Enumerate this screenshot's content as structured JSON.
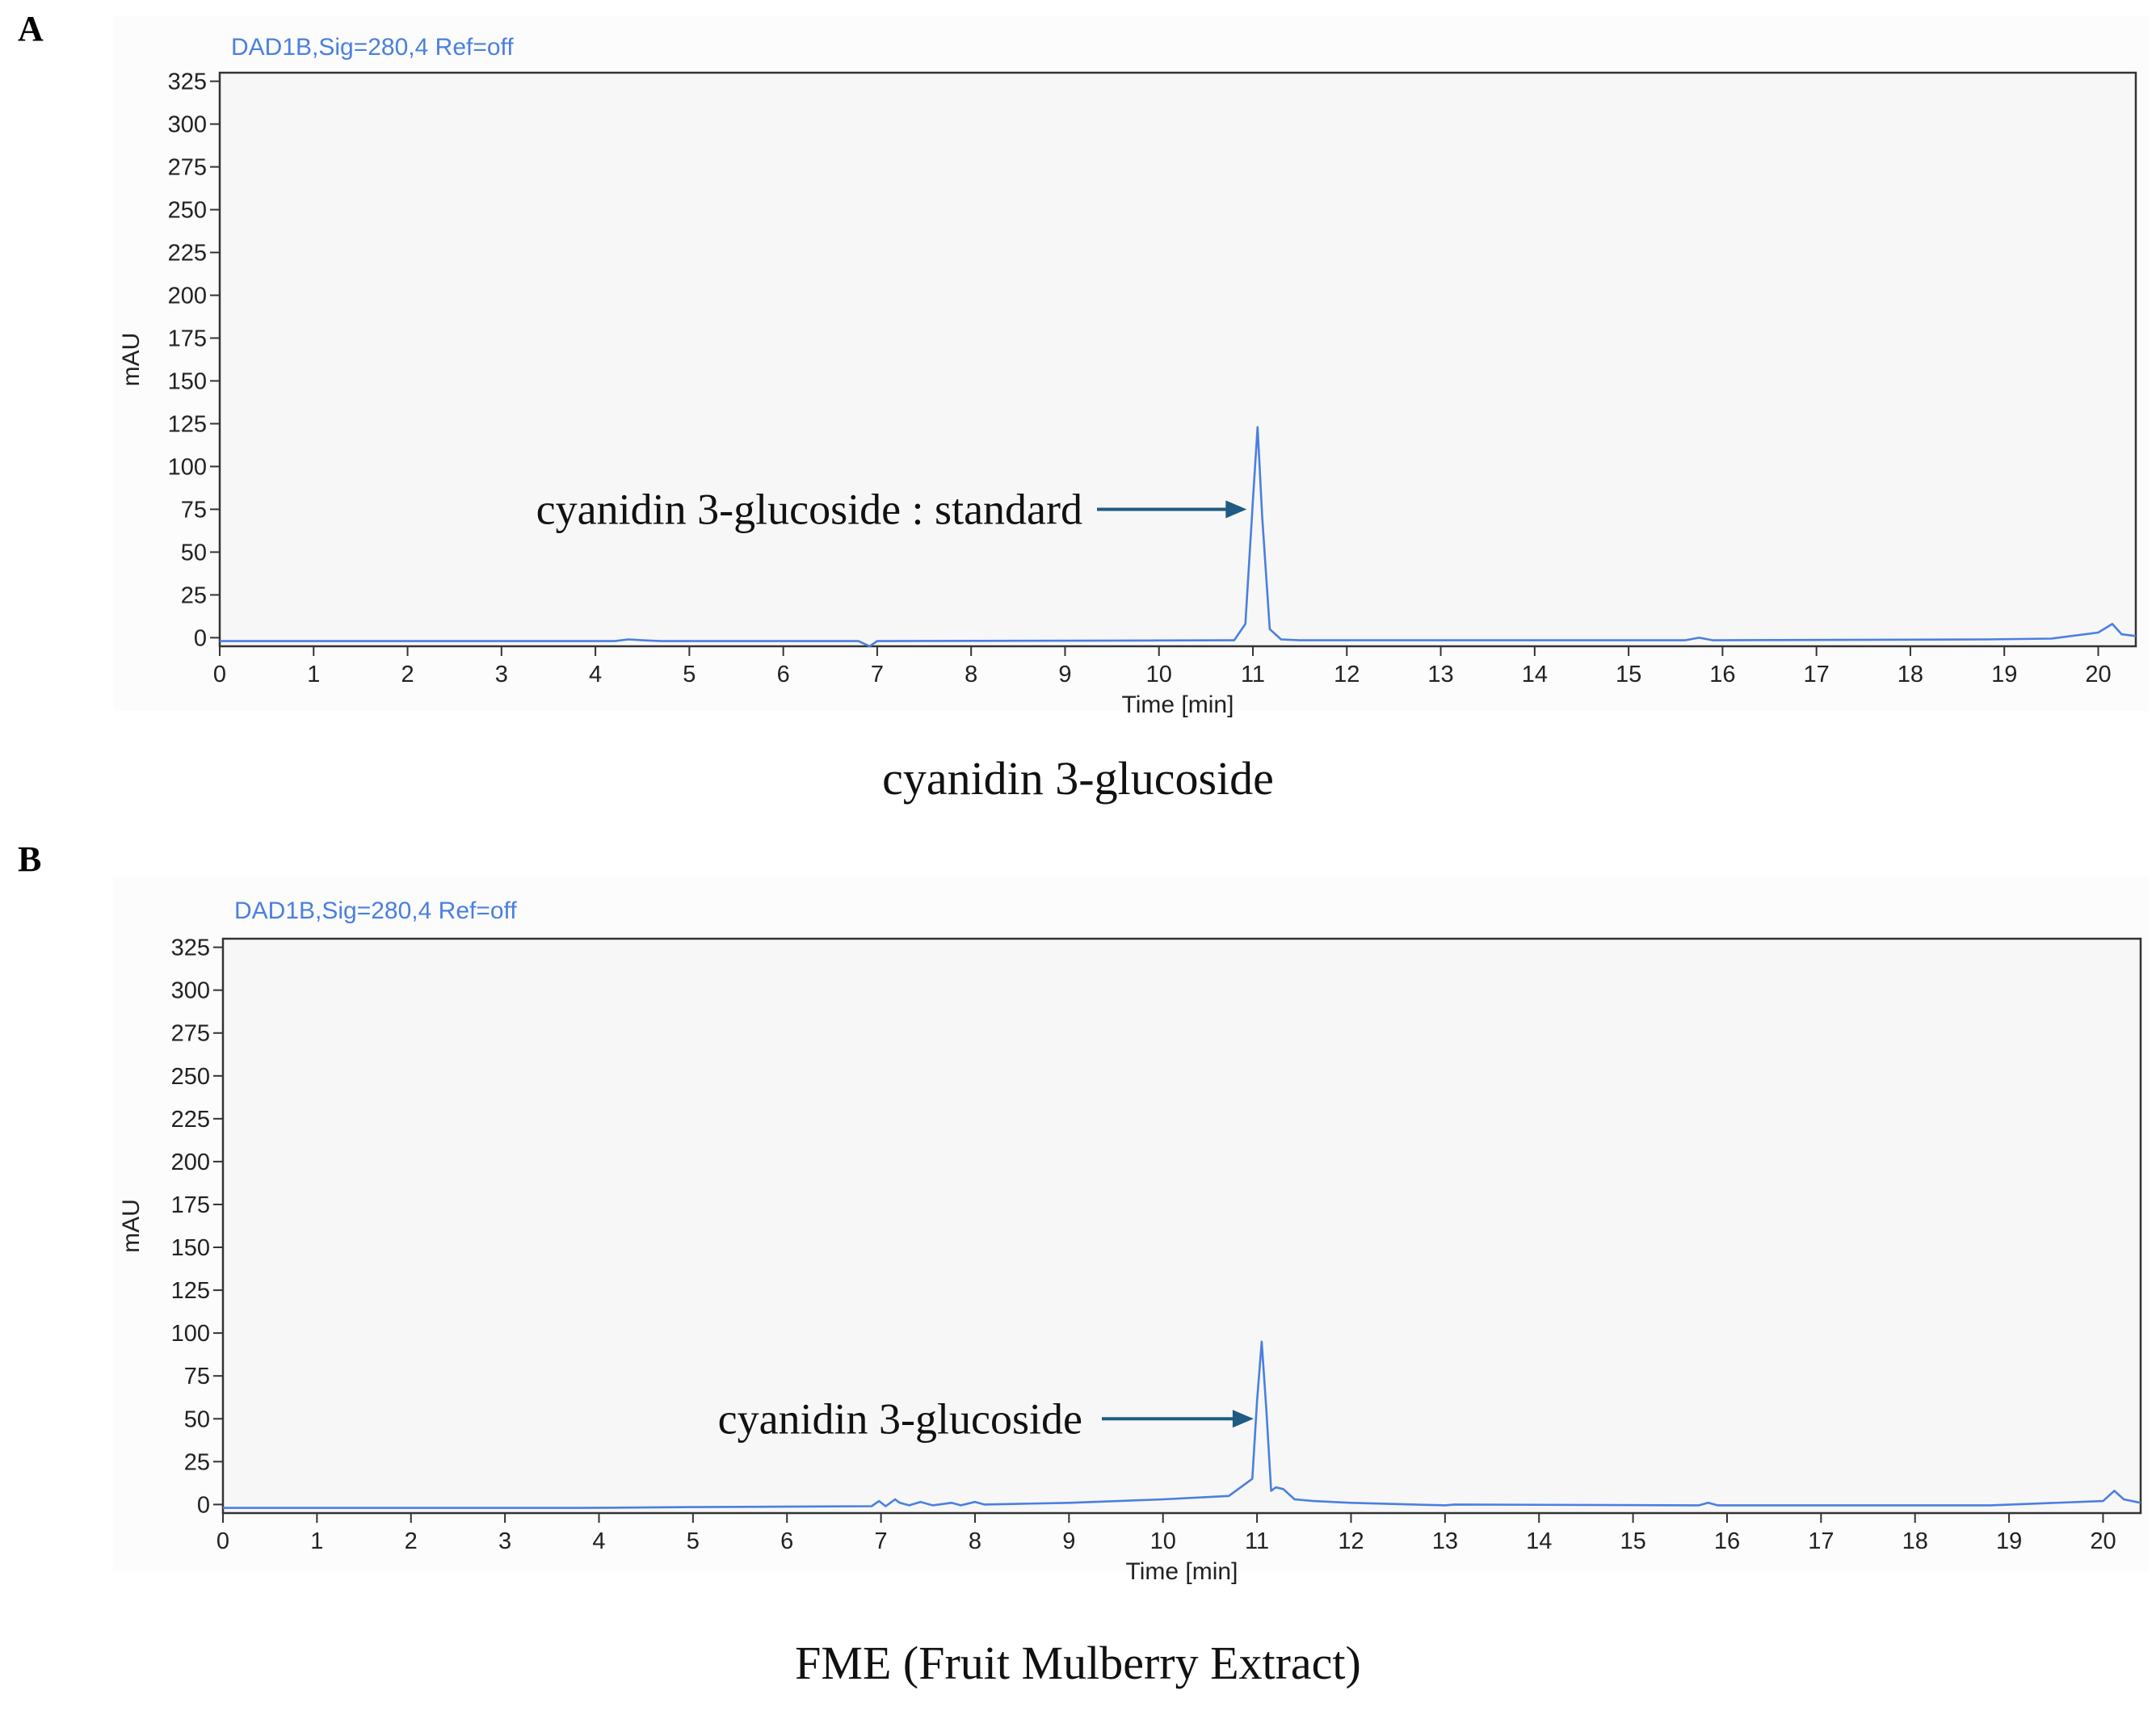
{
  "panels": [
    {
      "letter": "A",
      "caption": "cyanidin 3-glucoside"
    },
    {
      "letter": "B",
      "caption": "FME (Fruit Mulberry Extract)"
    }
  ],
  "colors": {
    "trace": "#4a7fe0",
    "arrow": "#1f5b82",
    "frame": "#333333",
    "plot_bg": "#f7f7f7"
  },
  "chart_data": [
    {
      "type": "line",
      "title": "DAD1B,Sig=280,4  Ref=off",
      "xlabel": "Time [min]",
      "ylabel": "mAU",
      "xlim": [
        0,
        20.4
      ],
      "ylim": [
        -5,
        330
      ],
      "x_ticks": [
        0,
        1,
        2,
        3,
        4,
        5,
        6,
        7,
        8,
        9,
        10,
        11,
        12,
        13,
        14,
        15,
        16,
        17,
        18,
        19,
        20
      ],
      "y_ticks": [
        0,
        25,
        50,
        75,
        100,
        125,
        150,
        175,
        200,
        225,
        250,
        275,
        300,
        325
      ],
      "grid": false,
      "series": [
        {
          "x": [
            0,
            4.2,
            4.35,
            4.5,
            4.7,
            6.8,
            6.92,
            7.0,
            10.8,
            10.92,
            11.0,
            11.05,
            11.1,
            11.18,
            11.3,
            11.5,
            13,
            15.6,
            15.75,
            15.9,
            18.8,
            19.5,
            20.0,
            20.15,
            20.25,
            20.4
          ],
          "y": [
            -2,
            -2,
            -1,
            -1.5,
            -2,
            -2,
            -5,
            -2,
            -1.5,
            8,
            80,
            123,
            70,
            5,
            -1,
            -1.5,
            -1.5,
            -1.5,
            0,
            -1.5,
            -1,
            -0.5,
            3,
            8,
            2,
            1
          ]
        }
      ],
      "annotations": [
        {
          "text": "cyanidin 3-glucoside : standard",
          "x": 11.02,
          "y": 75
        }
      ]
    },
    {
      "type": "line",
      "title": "DAD1B,Sig=280,4  Ref=off",
      "xlabel": "Time [min]",
      "ylabel": "mAU",
      "xlim": [
        0,
        20.4
      ],
      "ylim": [
        -5,
        330
      ],
      "x_ticks": [
        0,
        1,
        2,
        3,
        4,
        5,
        6,
        7,
        8,
        9,
        10,
        11,
        12,
        13,
        14,
        15,
        16,
        17,
        18,
        19,
        20
      ],
      "y_ticks": [
        0,
        25,
        50,
        75,
        100,
        125,
        150,
        175,
        200,
        225,
        250,
        275,
        300,
        325
      ],
      "grid": false,
      "series": [
        {
          "x": [
            0,
            3.8,
            5,
            6.9,
            6.98,
            7.05,
            7.15,
            7.2,
            7.3,
            7.42,
            7.55,
            7.75,
            7.85,
            8.0,
            8.1,
            9,
            10,
            10.7,
            10.95,
            11.0,
            11.05,
            11.1,
            11.15,
            11.2,
            11.28,
            11.4,
            11.6,
            12,
            13,
            13.1,
            15.7,
            15.8,
            15.9,
            18.8,
            20.0,
            20.12,
            20.22,
            20.4
          ],
          "y": [
            -2,
            -2,
            -1.5,
            -1,
            2,
            -1,
            3,
            1,
            -0.5,
            1.5,
            -0.5,
            1,
            -0.5,
            1.5,
            0,
            1,
            3,
            5,
            15,
            60,
            95,
            55,
            8,
            10,
            9,
            3,
            2,
            1,
            -0.5,
            0,
            -0.5,
            1,
            -0.5,
            -0.5,
            2,
            8,
            3,
            1
          ]
        }
      ],
      "annotations": [
        {
          "text": "cyanidin 3-glucoside",
          "x": 11.05,
          "y": 50
        }
      ]
    }
  ]
}
